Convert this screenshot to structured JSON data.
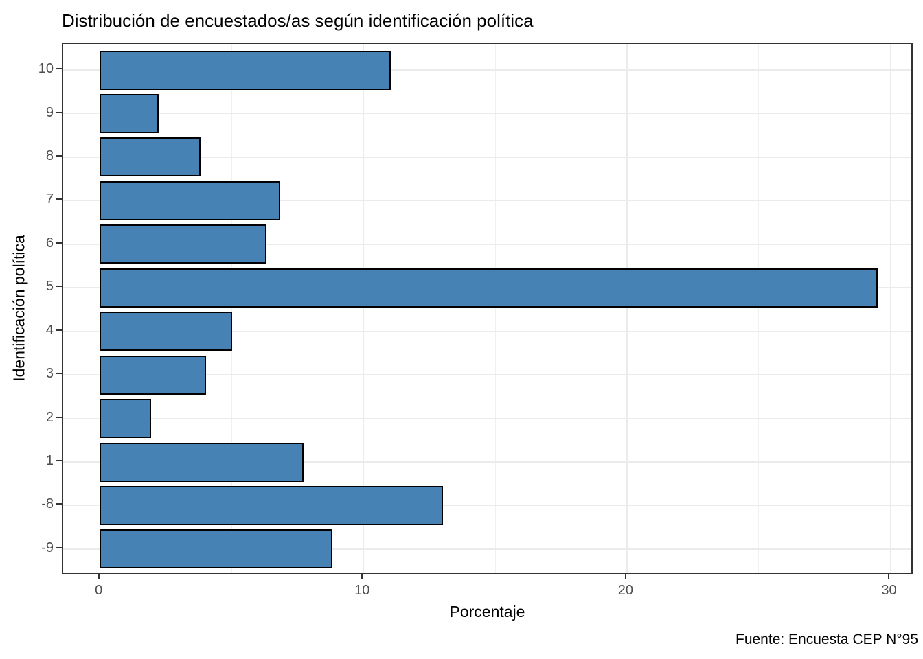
{
  "chart_data": {
    "type": "bar",
    "orientation": "horizontal",
    "title": "Distribución de encuestados/as según identificación política",
    "xlabel": "Porcentaje",
    "ylabel": "Identificación política",
    "caption": "Fuente: Encuesta CEP N°95",
    "categories": [
      "10",
      "9",
      "8",
      "7",
      "6",
      "5",
      "4",
      "3",
      "2",
      "1",
      "-8",
      "-9"
    ],
    "values": [
      11.0,
      2.2,
      3.8,
      6.8,
      6.3,
      29.5,
      5.0,
      4.0,
      1.9,
      7.7,
      13.0,
      8.8
    ],
    "x_ticks": [
      0,
      10,
      20,
      30
    ],
    "x_minor_ticks": [
      5,
      15,
      25
    ],
    "xlim": [
      -1.4,
      30.9
    ],
    "bar_width": 0.9,
    "grid": true,
    "legend": "none",
    "colors": {
      "bar_fill": "#4682B4",
      "bar_stroke": "#000000",
      "grid_major": "#ebebeb",
      "grid_minor": "#f0f0f0",
      "panel_border": "#333333",
      "tick_label": "#4d4d4d",
      "text": "#000000"
    }
  }
}
